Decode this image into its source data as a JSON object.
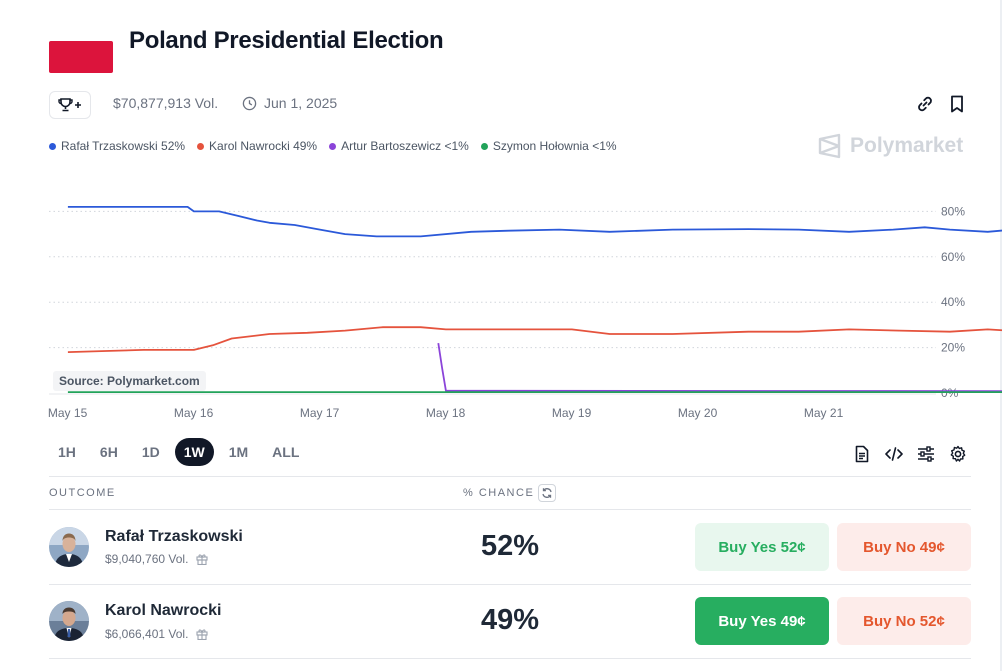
{
  "market": {
    "title": "Poland Presidential Election",
    "volume": "$70,877,913 Vol.",
    "end_date": "Jun 1, 2025",
    "flag_colors": [
      "#ffffff",
      "#dc143c"
    ]
  },
  "icons": {
    "trophy": "trophy-plus-icon",
    "clock": "clock-icon",
    "link": "link-icon",
    "bookmark": "bookmark-icon",
    "document": "document-icon",
    "code": "code-icon",
    "sliders": "sliders-icon",
    "settings": "gear-icon",
    "gift": "gift-icon",
    "refresh": "refresh-icon"
  },
  "watermark": "Polymarket",
  "source_label": "Source: Polymarket.com",
  "chart_data": {
    "type": "line",
    "title": "",
    "ylabel": "",
    "xlabel": "",
    "x_ticks": [
      "May 15",
      "May 16",
      "May 17",
      "May 18",
      "May 19",
      "May 20",
      "May 21"
    ],
    "y_ticks": [
      "80%",
      "60%",
      "40%",
      "20%",
      "0%"
    ],
    "ylim": [
      0,
      90
    ],
    "grid": "horizontal dotted",
    "legend_position": "top-left",
    "series": [
      {
        "name": "Rafał Trzaskowski",
        "legend": "Rafał Trzaskowski 52%",
        "color": "#2b59d9",
        "points": [
          [
            15.0,
            82
          ],
          [
            15.5,
            82
          ],
          [
            15.95,
            82
          ],
          [
            16.0,
            80
          ],
          [
            16.2,
            80
          ],
          [
            16.35,
            78
          ],
          [
            16.5,
            76
          ],
          [
            16.6,
            75
          ],
          [
            16.8,
            74
          ],
          [
            17.0,
            72
          ],
          [
            17.2,
            70
          ],
          [
            17.45,
            69
          ],
          [
            17.8,
            69
          ],
          [
            18.2,
            71
          ],
          [
            18.5,
            71.5
          ],
          [
            18.9,
            72
          ],
          [
            19.3,
            71
          ],
          [
            19.8,
            72
          ],
          [
            20.4,
            72.2
          ],
          [
            20.8,
            72
          ],
          [
            21.2,
            71
          ],
          [
            21.55,
            72
          ],
          [
            21.8,
            73
          ],
          [
            22.0,
            72
          ],
          [
            22.3,
            71
          ],
          [
            22.5,
            72
          ],
          [
            23.0,
            74
          ],
          [
            23.15,
            74
          ],
          [
            23.25,
            68
          ],
          [
            23.3,
            61
          ],
          [
            23.35,
            58
          ],
          [
            23.45,
            61
          ],
          [
            23.6,
            55
          ],
          [
            23.7,
            59
          ],
          [
            23.8,
            62
          ],
          [
            23.9,
            60
          ],
          [
            24.0,
            62
          ],
          [
            24.2,
            64
          ],
          [
            24.3,
            62
          ],
          [
            24.45,
            61
          ],
          [
            24.7,
            62
          ],
          [
            25.0,
            62
          ],
          [
            25.2,
            61
          ],
          [
            25.4,
            60
          ],
          [
            25.6,
            59
          ],
          [
            26.0,
            58
          ],
          [
            26.4,
            57
          ],
          [
            26.6,
            56
          ],
          [
            26.8,
            55
          ],
          [
            27.0,
            52
          ],
          [
            27.2,
            51
          ],
          [
            27.4,
            49
          ],
          [
            27.6,
            50
          ],
          [
            27.7,
            52
          ],
          [
            27.85,
            53
          ],
          [
            28.0,
            52
          ],
          [
            28.3,
            51
          ],
          [
            28.65,
            52
          ],
          [
            28.9,
            52
          ],
          [
            29.0,
            52
          ]
        ]
      },
      {
        "name": "Karol Nawrocki",
        "legend": "Karol Nawrocki 49%",
        "color": "#e5533d",
        "points": [
          [
            15.0,
            18
          ],
          [
            15.3,
            18.5
          ],
          [
            15.6,
            19
          ],
          [
            16.0,
            19
          ],
          [
            16.15,
            21
          ],
          [
            16.3,
            24
          ],
          [
            16.6,
            26
          ],
          [
            16.9,
            26.5
          ],
          [
            17.2,
            27.5
          ],
          [
            17.5,
            29
          ],
          [
            17.8,
            29
          ],
          [
            18.0,
            28
          ],
          [
            18.5,
            28
          ],
          [
            19.0,
            28
          ],
          [
            19.3,
            26
          ],
          [
            19.8,
            26
          ],
          [
            20.4,
            27
          ],
          [
            20.8,
            27
          ],
          [
            21.2,
            28
          ],
          [
            21.6,
            27.5
          ],
          [
            22.0,
            27
          ],
          [
            22.3,
            28
          ],
          [
            22.6,
            27
          ],
          [
            22.9,
            27
          ],
          [
            23.0,
            25
          ],
          [
            23.1,
            25
          ],
          [
            23.15,
            29
          ],
          [
            23.25,
            38
          ],
          [
            23.3,
            45
          ],
          [
            23.35,
            42
          ],
          [
            23.5,
            43
          ],
          [
            23.6,
            45
          ],
          [
            23.7,
            47
          ],
          [
            23.8,
            43
          ],
          [
            23.9,
            42
          ],
          [
            24.1,
            41
          ],
          [
            24.3,
            45
          ],
          [
            24.45,
            45
          ],
          [
            24.6,
            44
          ],
          [
            24.8,
            41
          ],
          [
            25.0,
            39
          ],
          [
            25.2,
            41
          ],
          [
            25.4,
            43
          ],
          [
            25.6,
            44
          ],
          [
            25.8,
            45
          ],
          [
            26.0,
            45
          ],
          [
            26.3,
            45.5
          ],
          [
            26.6,
            46
          ],
          [
            26.8,
            48
          ],
          [
            27.0,
            51
          ],
          [
            27.2,
            52
          ],
          [
            27.4,
            50
          ],
          [
            27.6,
            50
          ],
          [
            27.8,
            48
          ],
          [
            28.0,
            48.5
          ],
          [
            28.3,
            49
          ],
          [
            28.65,
            48.5
          ],
          [
            28.9,
            49
          ],
          [
            29.0,
            49
          ]
        ]
      },
      {
        "name": "Artur Bartoszewicz",
        "legend": "Artur Bartoszewicz <1%",
        "color": "#8b44d9",
        "points": [
          [
            17.94,
            22
          ],
          [
            17.97,
            11
          ],
          [
            18.0,
            1
          ],
          [
            29.0,
            0.5
          ]
        ]
      },
      {
        "name": "Szymon Hołownia",
        "legend": "Szymon Hołownia <1%",
        "color": "#22a35a",
        "points": [
          [
            15.0,
            0.4
          ],
          [
            29.0,
            0.4
          ]
        ]
      }
    ]
  },
  "ranges": [
    {
      "label": "1H",
      "active": false
    },
    {
      "label": "6H",
      "active": false
    },
    {
      "label": "1D",
      "active": false
    },
    {
      "label": "1W",
      "active": true
    },
    {
      "label": "1M",
      "active": false
    },
    {
      "label": "ALL",
      "active": false
    }
  ],
  "table": {
    "outcome_header": "OUTCOME",
    "chance_header": "% CHANCE",
    "outcomes": [
      {
        "name": "Rafał Trzaskowski",
        "volume": "$9,040,760 Vol.",
        "chance": "52%",
        "buy_yes": "Buy Yes 52¢",
        "buy_no": "Buy No 49¢",
        "yes_selected": false
      },
      {
        "name": "Karol Nawrocki",
        "volume": "$6,066,401 Vol.",
        "chance": "49%",
        "buy_yes": "Buy Yes 49¢",
        "buy_no": "Buy No 52¢",
        "yes_selected": true
      }
    ]
  }
}
